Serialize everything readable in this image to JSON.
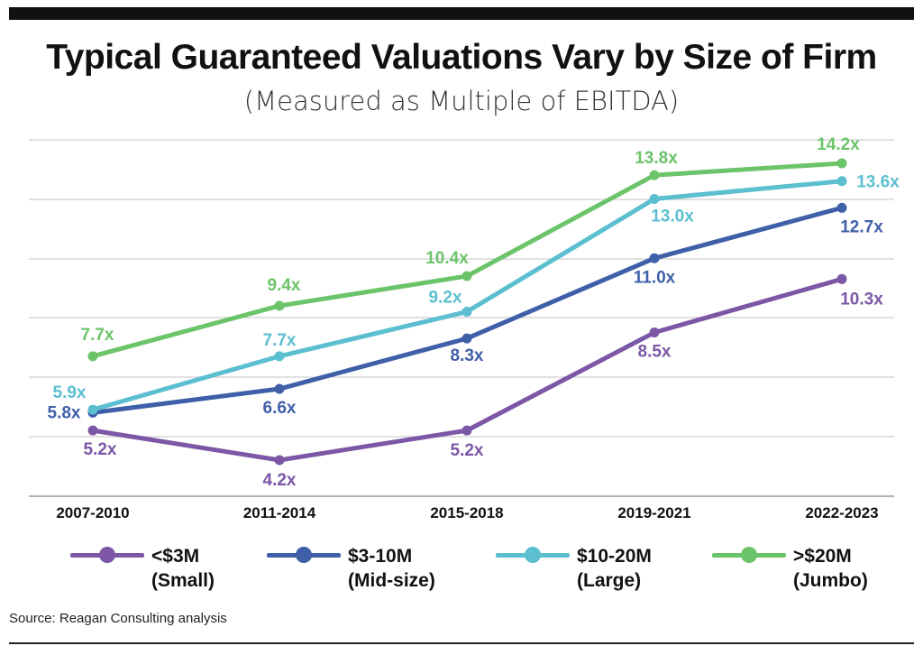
{
  "title": "Typical Guaranteed Valuations Vary by Size of Firm",
  "subtitle": "(Measured as Multiple of EBITDA)",
  "source": "Source: Reagan Consulting analysis",
  "legend": [
    {
      "name": "<$3M",
      "sub": "(Small)"
    },
    {
      "name": "$3-10M",
      "sub": "(Mid-size)"
    },
    {
      "name": "$10-20M",
      "sub": "(Large)"
    },
    {
      "name": ">$20M",
      "sub": "(Jumbo)"
    }
  ],
  "chart_data": {
    "type": "line",
    "title": "Typical Guaranteed Valuations Vary by Size of Firm",
    "subtitle": "(Measured as Multiple of EBITDA)",
    "categories": [
      "2007-2010",
      "2011-2014",
      "2015-2018",
      "2019-2021",
      "2022-2023"
    ],
    "ylim": [
      3,
      15
    ],
    "grid": true,
    "legend_position": "bottom",
    "series": [
      {
        "name": "<$3M (Small)",
        "color": "#7b57a6",
        "values": [
          5.2,
          4.2,
          5.2,
          8.5,
          10.3
        ],
        "labels": [
          "5.2x",
          "4.2x",
          "5.2x",
          "8.5x",
          "10.3x"
        ]
      },
      {
        "name": "$3-10M (Mid-size)",
        "color": "#3f5fa8",
        "values": [
          5.8,
          6.6,
          8.3,
          11.0,
          12.7
        ],
        "labels": [
          "5.8x",
          "6.6x",
          "8.3x",
          "11.0x",
          "12.7x"
        ]
      },
      {
        "name": "$10-20M (Large)",
        "color": "#5bbfd0",
        "values": [
          5.9,
          7.7,
          9.2,
          13.0,
          13.6
        ],
        "labels": [
          "5.9x",
          "7.7x",
          "9.2x",
          "13.0x",
          "13.6x"
        ]
      },
      {
        "name": ">$20M (Jumbo)",
        "color": "#6cc46a",
        "values": [
          7.7,
          9.4,
          10.4,
          13.8,
          14.2
        ],
        "labels": [
          "7.7x",
          "9.4x",
          "10.4x",
          "13.8x",
          "14.2x"
        ]
      }
    ]
  }
}
